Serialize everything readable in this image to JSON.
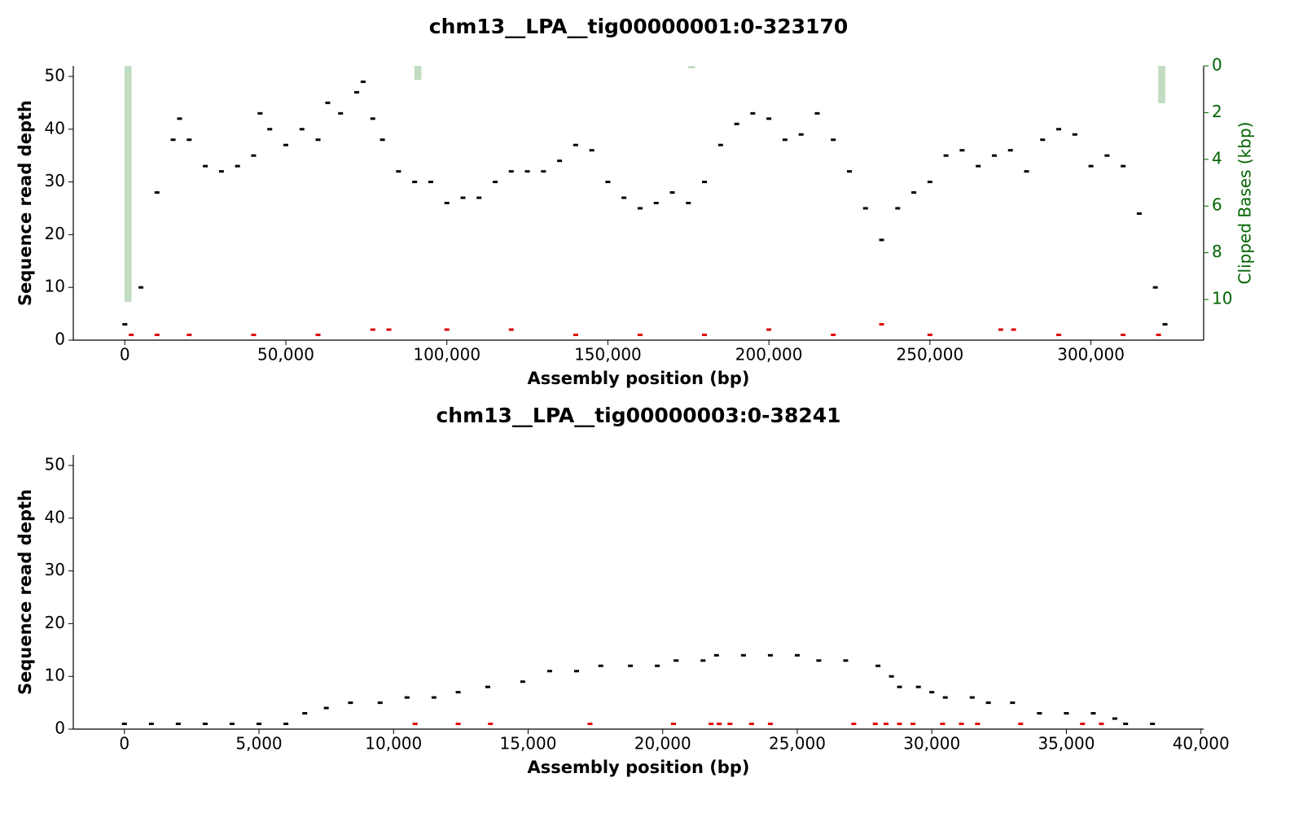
{
  "chart_data": [
    {
      "type": "scatter",
      "title": "chm13__LPA__tig00000001:0-323170",
      "xlabel": "Assembly position (bp)",
      "ylabel": "Sequence read depth",
      "y2label": "Clipped Bases (kbp)",
      "xlim": [
        -16000,
        335000
      ],
      "ylim": [
        0,
        52
      ],
      "y2lim": [
        11.74,
        0
      ],
      "xticks": [
        0,
        {
          "value": 50000,
          "label": "50,000"
        },
        {
          "value": 100000,
          "label": "100,000"
        },
        {
          "value": 150000,
          "label": "150,000"
        },
        {
          "value": 200000,
          "label": "200,000"
        },
        {
          "value": 250000,
          "label": "250,000"
        },
        {
          "value": 300000,
          "label": "300,000"
        }
      ],
      "yticks": [
        0,
        10,
        20,
        30,
        40,
        50
      ],
      "y2ticks": [
        0,
        2,
        4,
        6,
        8,
        10
      ],
      "series": [
        {
          "color": "#000000",
          "x": [
            0,
            5000,
            10000,
            15000,
            17000,
            20000,
            25000,
            30000,
            35000,
            40000,
            42000,
            45000,
            50000,
            55000,
            60000,
            63000,
            67000,
            72000,
            74000,
            77000,
            80000,
            85000,
            90000,
            95000,
            100000,
            105000,
            110000,
            115000,
            120000,
            125000,
            130000,
            135000,
            140000,
            145000,
            150000,
            155000,
            160000,
            165000,
            170000,
            175000,
            180000,
            185000,
            190000,
            195000,
            200000,
            205000,
            210000,
            215000,
            220000,
            225000,
            230000,
            235000,
            240000,
            245000,
            250000,
            255000,
            260000,
            265000,
            270000,
            275000,
            280000,
            285000,
            290000,
            295000,
            300000,
            305000,
            310000,
            315000,
            320000,
            323000
          ],
          "values": [
            3,
            10,
            28,
            38,
            42,
            38,
            33,
            32,
            33,
            35,
            43,
            40,
            37,
            40,
            38,
            45,
            43,
            47,
            49,
            42,
            38,
            32,
            30,
            30,
            26,
            27,
            27,
            30,
            32,
            32,
            32,
            34,
            37,
            36,
            30,
            27,
            25,
            26,
            28,
            26,
            30,
            37,
            41,
            43,
            42,
            38,
            39,
            43,
            38,
            32,
            25,
            19,
            25,
            28,
            30,
            35,
            36,
            33,
            35,
            36,
            32,
            38,
            40,
            39,
            33,
            35,
            33,
            24,
            10,
            3
          ]
        },
        {
          "color": "#e00000",
          "x": [
            2000,
            10000,
            20000,
            40000,
            60000,
            77000,
            82000,
            100000,
            120000,
            140000,
            160000,
            180000,
            200000,
            220000,
            235000,
            250000,
            272000,
            276000,
            290000,
            310000,
            321000
          ],
          "values": [
            1,
            1,
            1,
            1,
            1,
            2,
            2,
            2,
            2,
            1,
            1,
            1,
            2,
            1,
            3,
            1,
            2,
            2,
            1,
            1,
            1
          ]
        },
        {
          "type": "bar",
          "axis": "y2",
          "color": "#c2dcc2",
          "bar_width": 2200,
          "x": [
            1000,
            91000,
            176000,
            322000
          ],
          "values": [
            10.1,
            0.6,
            0.1,
            1.6
          ]
        }
      ]
    },
    {
      "type": "scatter",
      "title": "chm13__LPA__tig00000003:0-38241",
      "xlabel": "Assembly position (bp)",
      "ylabel": "Sequence read depth",
      "xlim": [
        -1900,
        40100
      ],
      "ylim": [
        0,
        52
      ],
      "xticks": [
        0,
        {
          "value": 5000,
          "label": "5,000"
        },
        {
          "value": 10000,
          "label": "10,000"
        },
        {
          "value": 15000,
          "label": "15,000"
        },
        {
          "value": 20000,
          "label": "20,000"
        },
        {
          "value": 25000,
          "label": "25,000"
        },
        {
          "value": 30000,
          "label": "30,000"
        },
        {
          "value": 35000,
          "label": "35,000"
        },
        {
          "value": 40000,
          "label": "40,000"
        }
      ],
      "yticks": [
        0,
        10,
        20,
        30,
        40,
        50
      ],
      "series": [
        {
          "color": "#000000",
          "x": [
            0,
            1000,
            2000,
            3000,
            4000,
            5000,
            6000,
            6700,
            7500,
            8400,
            9500,
            10500,
            11500,
            12400,
            13500,
            14800,
            15800,
            16800,
            17700,
            18800,
            19800,
            20500,
            21500,
            22000,
            23000,
            24000,
            25000,
            25800,
            26800,
            28000,
            28500,
            28800,
            29500,
            30000,
            30500,
            31500,
            32100,
            33000,
            34000,
            35000,
            36000,
            36800,
            37200,
            38200
          ],
          "values": [
            1,
            1,
            1,
            1,
            1,
            1,
            1,
            3,
            4,
            5,
            5,
            6,
            6,
            7,
            8,
            9,
            11,
            11,
            12,
            12,
            12,
            13,
            13,
            14,
            14,
            14,
            14,
            13,
            13,
            12,
            10,
            8,
            8,
            7,
            6,
            6,
            5,
            5,
            3,
            3,
            3,
            2,
            1,
            1
          ]
        },
        {
          "color": "#e00000",
          "x": [
            10800,
            12400,
            13600,
            17300,
            20400,
            21800,
            22100,
            22500,
            23300,
            24000,
            27100,
            27900,
            28300,
            28800,
            29300,
            30400,
            31100,
            31700,
            33300,
            35600,
            36300
          ],
          "values": [
            1,
            1,
            1,
            1,
            1,
            1,
            1,
            1,
            1,
            1,
            1,
            1,
            1,
            1,
            1,
            1,
            1,
            1,
            1,
            1,
            1
          ]
        }
      ]
    }
  ]
}
